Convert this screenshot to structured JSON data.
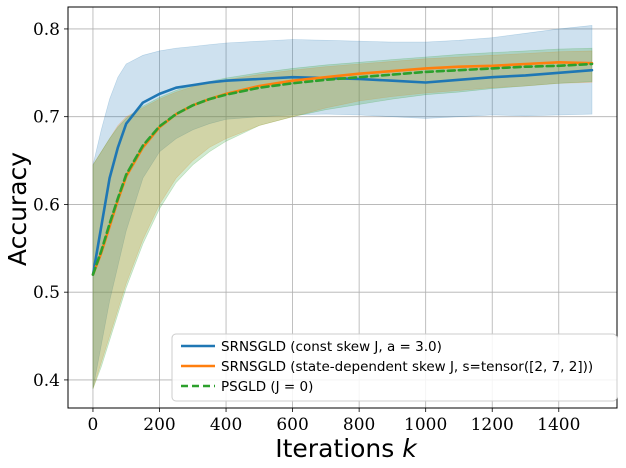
{
  "chart_data": {
    "type": "line",
    "xlabel": "Iterations",
    "xlabel_var": "k",
    "ylabel": "Accuracy",
    "xlim": [
      -75,
      1575
    ],
    "ylim": [
      0.368,
      0.825
    ],
    "xticks": [
      0,
      200,
      400,
      600,
      800,
      1000,
      1200,
      1400
    ],
    "yticks": [
      0.4,
      0.5,
      0.6,
      0.7,
      0.8
    ],
    "grid": true,
    "legend_position": "lower right",
    "series": [
      {
        "name": "SRNSGLD (const skew J, a = 3.0)",
        "color": "#1f77b4",
        "dash": "solid",
        "x": [
          0,
          25,
          50,
          75,
          100,
          150,
          200,
          250,
          300,
          350,
          400,
          500,
          600,
          700,
          800,
          900,
          1000,
          1100,
          1200,
          1300,
          1400,
          1500
        ],
        "y": [
          0.52,
          0.575,
          0.63,
          0.665,
          0.692,
          0.716,
          0.726,
          0.733,
          0.736,
          0.739,
          0.741,
          0.743,
          0.745,
          0.744,
          0.743,
          0.741,
          0.739,
          0.742,
          0.745,
          0.747,
          0.75,
          0.753
        ],
        "lower": [
          0.39,
          0.44,
          0.49,
          0.53,
          0.57,
          0.63,
          0.66,
          0.675,
          0.685,
          0.692,
          0.697,
          0.7,
          0.702,
          0.703,
          0.702,
          0.7,
          0.698,
          0.7,
          0.702,
          0.701,
          0.702,
          0.703
        ],
        "upper": [
          0.645,
          0.685,
          0.72,
          0.745,
          0.76,
          0.77,
          0.775,
          0.778,
          0.78,
          0.782,
          0.784,
          0.786,
          0.788,
          0.787,
          0.786,
          0.785,
          0.785,
          0.787,
          0.79,
          0.795,
          0.8,
          0.804
        ]
      },
      {
        "name": "SRNSGLD (state-dependent skew J, s=tensor([2, 7, 2]))",
        "color": "#ff7f0e",
        "dash": "solid",
        "x": [
          0,
          25,
          50,
          75,
          100,
          150,
          200,
          250,
          300,
          350,
          400,
          500,
          600,
          700,
          800,
          900,
          1000,
          1100,
          1200,
          1300,
          1400,
          1500
        ],
        "y": [
          0.52,
          0.545,
          0.575,
          0.605,
          0.632,
          0.665,
          0.688,
          0.703,
          0.713,
          0.72,
          0.726,
          0.735,
          0.741,
          0.745,
          0.749,
          0.752,
          0.755,
          0.757,
          0.758,
          0.76,
          0.762,
          0.761
        ],
        "lower": [
          0.39,
          0.42,
          0.45,
          0.48,
          0.51,
          0.56,
          0.6,
          0.63,
          0.65,
          0.665,
          0.675,
          0.69,
          0.7,
          0.71,
          0.718,
          0.723,
          0.727,
          0.73,
          0.733,
          0.735,
          0.738,
          0.739
        ],
        "upper": [
          0.645,
          0.66,
          0.675,
          0.69,
          0.7,
          0.71,
          0.72,
          0.728,
          0.734,
          0.738,
          0.742,
          0.748,
          0.753,
          0.757,
          0.76,
          0.763,
          0.766,
          0.768,
          0.77,
          0.772,
          0.774,
          0.775
        ]
      },
      {
        "name": "PSGLD (J = 0)",
        "color": "#2ca02c",
        "dash": "dashed",
        "x": [
          0,
          25,
          50,
          75,
          100,
          150,
          200,
          250,
          300,
          350,
          400,
          500,
          600,
          700,
          800,
          900,
          1000,
          1100,
          1200,
          1300,
          1400,
          1500
        ],
        "y": [
          0.52,
          0.547,
          0.578,
          0.607,
          0.634,
          0.667,
          0.689,
          0.703,
          0.713,
          0.72,
          0.725,
          0.733,
          0.738,
          0.742,
          0.745,
          0.748,
          0.751,
          0.753,
          0.755,
          0.757,
          0.758,
          0.76
        ],
        "lower": [
          0.39,
          0.415,
          0.445,
          0.475,
          0.505,
          0.555,
          0.595,
          0.625,
          0.645,
          0.66,
          0.672,
          0.69,
          0.7,
          0.708,
          0.714,
          0.72,
          0.725,
          0.728,
          0.732,
          0.735,
          0.738,
          0.74
        ],
        "upper": [
          0.645,
          0.66,
          0.675,
          0.688,
          0.698,
          0.712,
          0.722,
          0.73,
          0.736,
          0.74,
          0.744,
          0.75,
          0.755,
          0.759,
          0.762,
          0.765,
          0.768,
          0.771,
          0.773,
          0.775,
          0.777,
          0.778
        ]
      }
    ]
  }
}
